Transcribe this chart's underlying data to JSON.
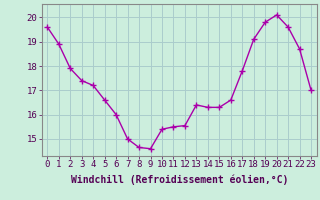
{
  "x": [
    0,
    1,
    2,
    3,
    4,
    5,
    6,
    7,
    8,
    9,
    10,
    11,
    12,
    13,
    14,
    15,
    16,
    17,
    18,
    19,
    20,
    21,
    22,
    23
  ],
  "y": [
    19.6,
    18.9,
    17.9,
    17.4,
    17.2,
    16.6,
    16.0,
    15.0,
    14.65,
    14.6,
    15.4,
    15.5,
    15.55,
    16.4,
    16.3,
    16.3,
    16.6,
    17.8,
    19.1,
    19.8,
    20.1,
    19.6,
    18.7,
    17.0
  ],
  "line_color": "#aa00aa",
  "marker": "+",
  "bg_color": "#cceedd",
  "grid_color": "#aacccc",
  "xlabel": "Windchill (Refroidissement éolien,°C)",
  "ylim": [
    14.3,
    20.55
  ],
  "xlim": [
    -0.5,
    23.5
  ],
  "xticks": [
    0,
    1,
    2,
    3,
    4,
    5,
    6,
    7,
    8,
    9,
    10,
    11,
    12,
    13,
    14,
    15,
    16,
    17,
    18,
    19,
    20,
    21,
    22,
    23
  ],
  "yticks": [
    15,
    16,
    17,
    18,
    19,
    20
  ],
  "xlabel_fontsize": 7.0,
  "tick_fontsize": 6.5,
  "line_width": 1.0,
  "marker_size": 4,
  "marker_ew": 1.0
}
